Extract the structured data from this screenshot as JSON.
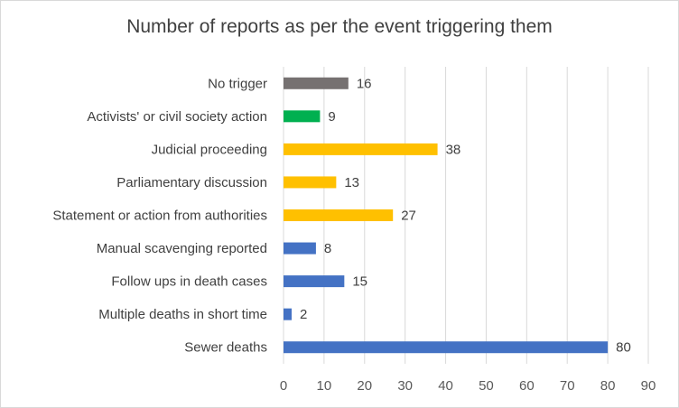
{
  "chart_data": {
    "type": "bar",
    "orientation": "horizontal",
    "title": "Number of reports as per the event triggering them",
    "xlabel": "",
    "ylabel": "",
    "xlim": [
      0,
      90
    ],
    "xticks": [
      0,
      10,
      20,
      30,
      40,
      50,
      60,
      70,
      80,
      90
    ],
    "grid": true,
    "legend": "none",
    "categories": [
      "No trigger",
      "Activists' or civil society action",
      "Judicial proceeding",
      "Parliamentary discussion",
      "Statement or action from authorities",
      "Manual scavenging reported",
      "Follow ups in death cases",
      "Multiple deaths in short time",
      "Sewer deaths"
    ],
    "values": [
      16,
      9,
      38,
      13,
      27,
      8,
      15,
      2,
      80
    ],
    "bar_colors": [
      "#767171",
      "#00b050",
      "#ffc000",
      "#ffc000",
      "#ffc000",
      "#4472c4",
      "#4472c4",
      "#4472c4",
      "#4472c4"
    ],
    "data_labels": [
      "16",
      "9",
      "38",
      "13",
      "27",
      "8",
      "15",
      "2",
      "80"
    ]
  },
  "colors": {
    "gridline": "#d9d9d9",
    "axis_text": "#595959",
    "label_text": "#404040"
  }
}
